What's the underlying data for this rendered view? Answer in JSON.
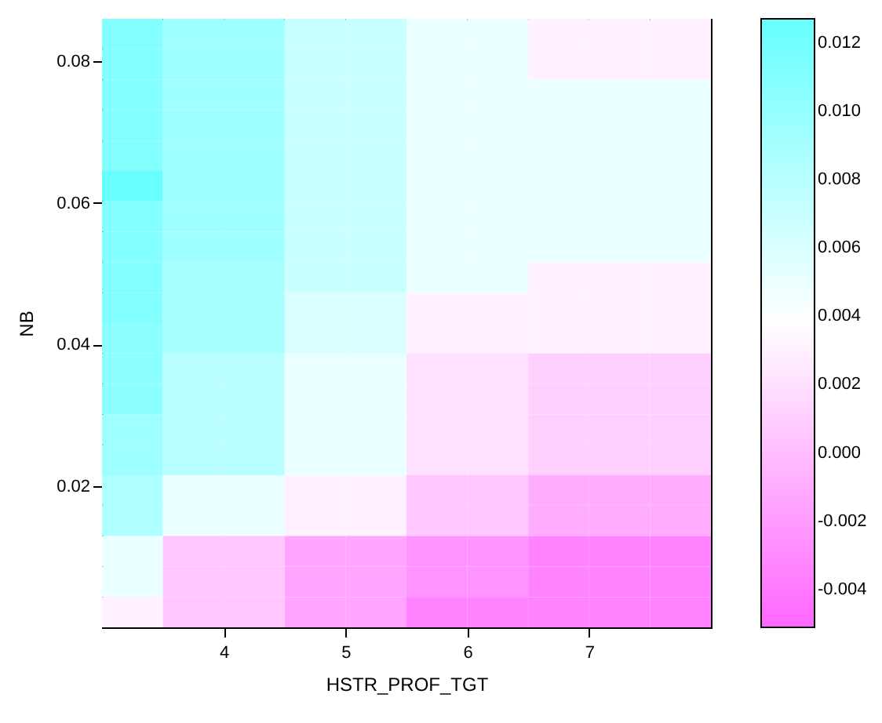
{
  "chart_data": {
    "type": "heatmap",
    "xlabel": "HSTR_PROF_TGT",
    "ylabel": "NB",
    "xlim": [
      3,
      8
    ],
    "xticks": [
      4,
      5,
      6,
      7
    ],
    "ylim": [
      0,
      0.086
    ],
    "yticks": [
      0.02,
      0.04,
      0.06,
      0.08
    ],
    "clim": [
      -0.0051,
      0.0127
    ],
    "cticks": [
      {
        "value": -0.004,
        "label": "-0.004"
      },
      {
        "value": -0.002,
        "label": "-0.002"
      },
      {
        "value": 0,
        "label": "0.000"
      },
      {
        "value": 0.002,
        "label": "0.002"
      },
      {
        "value": 0.004,
        "label": "0.004"
      },
      {
        "value": 0.006,
        "label": "0.006"
      },
      {
        "value": 0.008,
        "label": "0.008"
      },
      {
        "value": 0.01,
        "label": "0.010"
      },
      {
        "value": 0.012,
        "label": "0.012"
      }
    ],
    "cells": [
      [
        0.011,
        0.0095,
        0.0095,
        0.007,
        0.007,
        0.005,
        0.005,
        0.003,
        0.003,
        0.003
      ],
      [
        0.011,
        0.0095,
        0.0095,
        0.007,
        0.007,
        0.005,
        0.005,
        0.003,
        0.003,
        0.003
      ],
      [
        0.011,
        0.0095,
        0.0095,
        0.007,
        0.007,
        0.005,
        0.005,
        0.005,
        0.005,
        0.005
      ],
      [
        0.011,
        0.0095,
        0.0095,
        0.007,
        0.007,
        0.005,
        0.005,
        0.005,
        0.005,
        0.005
      ],
      [
        0.011,
        0.0095,
        0.0095,
        0.007,
        0.007,
        0.005,
        0.005,
        0.005,
        0.005,
        0.005
      ],
      [
        0.0125,
        0.0095,
        0.0095,
        0.007,
        0.007,
        0.005,
        0.005,
        0.005,
        0.005,
        0.005
      ],
      [
        0.011,
        0.0095,
        0.0095,
        0.007,
        0.007,
        0.005,
        0.005,
        0.005,
        0.005,
        0.005
      ],
      [
        0.011,
        0.0095,
        0.0095,
        0.007,
        0.007,
        0.005,
        0.005,
        0.005,
        0.005,
        0.005
      ],
      [
        0.011,
        0.009,
        0.009,
        0.007,
        0.007,
        0.005,
        0.005,
        0.003,
        0.003,
        0.003
      ],
      [
        0.011,
        0.009,
        0.009,
        0.006,
        0.006,
        0.003,
        0.003,
        0.003,
        0.003,
        0.003
      ],
      [
        0.0105,
        0.009,
        0.009,
        0.006,
        0.006,
        0.003,
        0.003,
        0.003,
        0.003,
        0.003
      ],
      [
        0.0105,
        0.0078,
        0.0078,
        0.005,
        0.005,
        0.002,
        0.002,
        0.001,
        0.001,
        0.001
      ],
      [
        0.0105,
        0.0078,
        0.0078,
        0.005,
        0.005,
        0.002,
        0.002,
        0.001,
        0.001,
        0.001
      ],
      [
        0.0095,
        0.0078,
        0.0078,
        0.005,
        0.005,
        0.002,
        0.002,
        0.001,
        0.001,
        0.001
      ],
      [
        0.0095,
        0.0078,
        0.0078,
        0.005,
        0.005,
        0.002,
        0.002,
        0.001,
        0.001,
        0.001
      ],
      [
        0.0085,
        0.005,
        0.005,
        0.003,
        0.003,
        0.0005,
        0.0005,
        -0.001,
        -0.001,
        -0.001
      ],
      [
        0.0085,
        0.005,
        0.005,
        0.003,
        0.003,
        0.0005,
        0.0005,
        -0.001,
        -0.001,
        -0.001
      ],
      [
        0.005,
        0.0005,
        0.0005,
        -0.0015,
        -0.0015,
        -0.0025,
        -0.0025,
        -0.0035,
        -0.0035,
        -0.0035
      ],
      [
        0.005,
        0.0005,
        0.0005,
        -0.0015,
        -0.0015,
        -0.0025,
        -0.0025,
        -0.0035,
        -0.0035,
        -0.0035
      ],
      [
        0.003,
        0.0005,
        0.0005,
        -0.0015,
        -0.0015,
        -0.0035,
        -0.0035,
        -0.0035,
        -0.0035,
        -0.0035
      ]
    ]
  }
}
